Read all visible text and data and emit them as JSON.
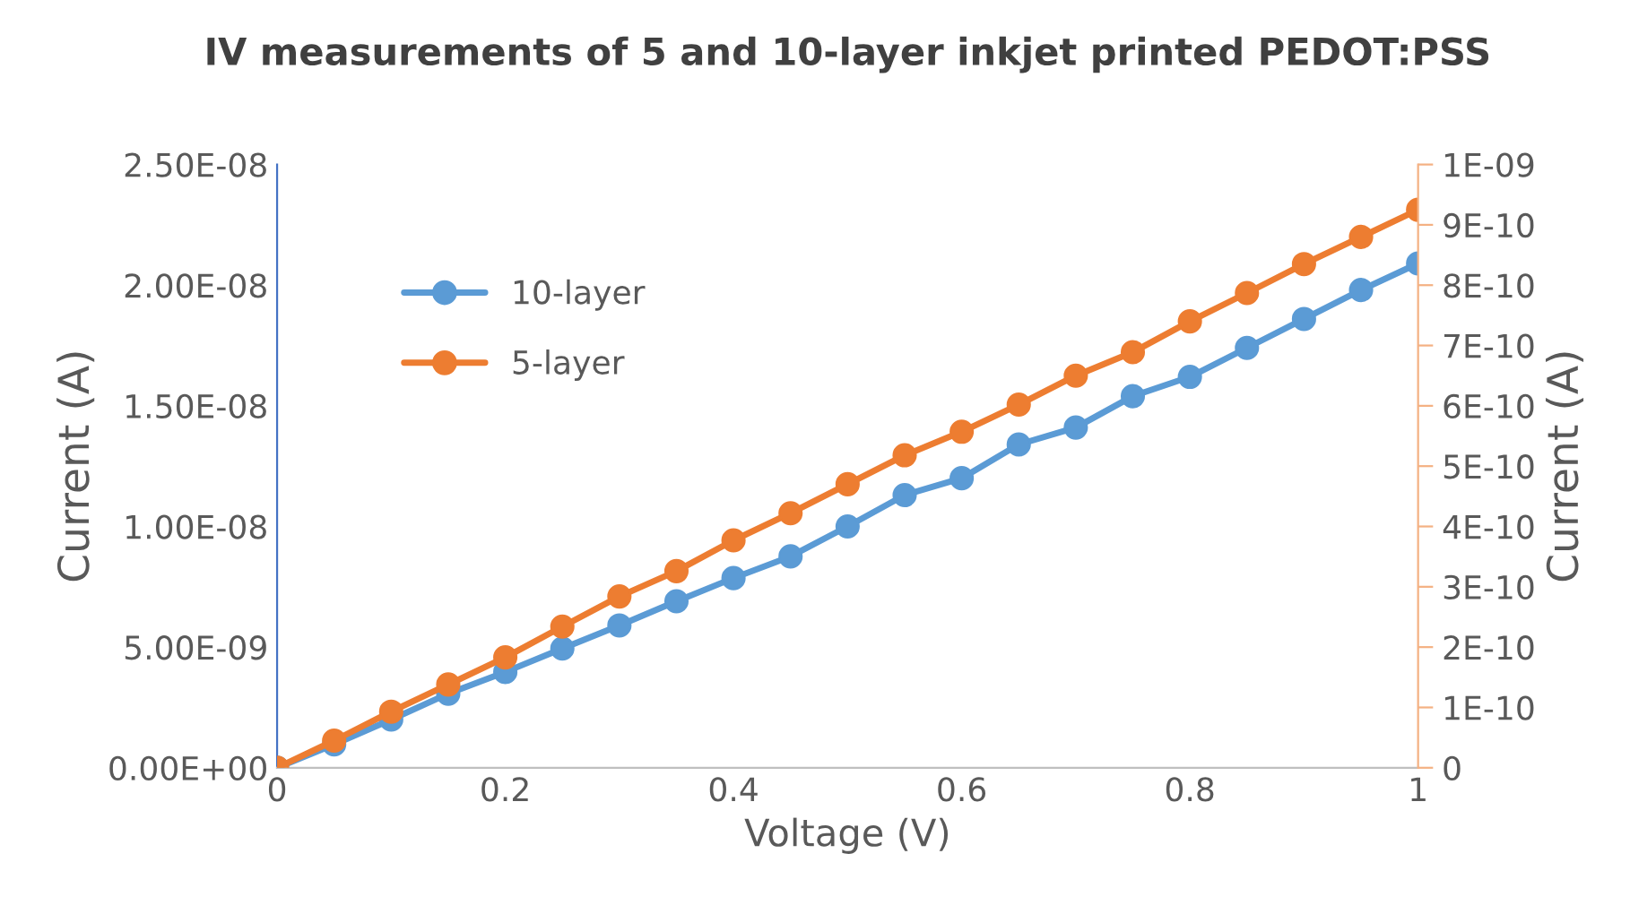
{
  "chart_data": {
    "type": "line",
    "title": "IV measurements of 5 and 10-layer inkjet printed PEDOT:PSS",
    "xlabel": "Voltage (V)",
    "ylabel": "Current (A)",
    "y2label": "Current (A)",
    "x": [
      0,
      0.05,
      0.1,
      0.15,
      0.2,
      0.25,
      0.3,
      0.35,
      0.4,
      0.45,
      0.5,
      0.55,
      0.6,
      0.65,
      0.7,
      0.75,
      0.8,
      0.85,
      0.9,
      0.95,
      1
    ],
    "series": [
      {
        "name": "10-layer",
        "color": "#5b9bd5",
        "axis": "y",
        "values": [
          0,
          9.7e-10,
          2e-09,
          3.07e-09,
          3.97e-09,
          4.94e-09,
          5.9e-09,
          6.9e-09,
          7.86e-09,
          8.76e-09,
          1e-08,
          1.13e-08,
          1.2e-08,
          1.34e-08,
          1.41e-08,
          1.54e-08,
          1.62e-08,
          1.74e-08,
          1.86e-08,
          1.98e-08,
          2.09e-08
        ]
      },
      {
        "name": "5-layer",
        "color": "#ed7d31",
        "axis": "y2",
        "values": [
          0,
          4.5e-11,
          9.3e-11,
          1.38e-10,
          1.83e-10,
          2.34e-10,
          2.84e-10,
          3.26e-10,
          3.77e-10,
          4.22e-10,
          4.7e-10,
          5.18e-10,
          5.57e-10,
          6.02e-10,
          6.5e-10,
          6.89e-10,
          7.4e-10,
          7.87e-10,
          8.35e-10,
          8.8e-10,
          9.25e-10
        ]
      }
    ],
    "xlim": [
      0,
      1
    ],
    "xticks": [
      0,
      0.2,
      0.4,
      0.6,
      0.8,
      1
    ],
    "ylim": [
      0,
      2.5e-08
    ],
    "yticks": [
      {
        "value": 0,
        "label": "0.00E+00"
      },
      {
        "value": 5e-09,
        "label": "5.00E-09"
      },
      {
        "value": 1e-08,
        "label": "1.00E-08"
      },
      {
        "value": 1.5e-08,
        "label": "1.50E-08"
      },
      {
        "value": 2e-08,
        "label": "2.00E-08"
      },
      {
        "value": 2.5e-08,
        "label": "2.50E-08"
      }
    ],
    "y2lim": [
      0,
      1e-09
    ],
    "y2ticks": [
      {
        "value": 0,
        "label": "0"
      },
      {
        "value": 1e-10,
        "label": "1E-10"
      },
      {
        "value": 2e-10,
        "label": "2E-10"
      },
      {
        "value": 3e-10,
        "label": "3E-10"
      },
      {
        "value": 4e-10,
        "label": "4E-10"
      },
      {
        "value": 5e-10,
        "label": "5E-10"
      },
      {
        "value": 6e-10,
        "label": "6E-10"
      },
      {
        "value": 7e-10,
        "label": "7E-10"
      },
      {
        "value": 8e-10,
        "label": "8E-10"
      },
      {
        "value": 9e-10,
        "label": "9E-10"
      },
      {
        "value": 1e-09,
        "label": "1E-09"
      }
    ],
    "grid": false,
    "legend": "top left",
    "marker": "circle",
    "line_style": "solid"
  }
}
